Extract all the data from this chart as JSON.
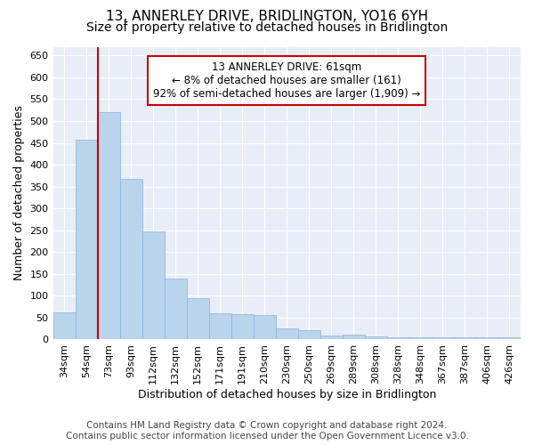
{
  "title": "13, ANNERLEY DRIVE, BRIDLINGTON, YO16 6YH",
  "subtitle": "Size of property relative to detached houses in Bridlington",
  "xlabel": "Distribution of detached houses by size in Bridlington",
  "ylabel": "Number of detached properties",
  "categories": [
    "34sqm",
    "54sqm",
    "73sqm",
    "93sqm",
    "112sqm",
    "132sqm",
    "152sqm",
    "171sqm",
    "191sqm",
    "210sqm",
    "230sqm",
    "250sqm",
    "269sqm",
    "289sqm",
    "308sqm",
    "328sqm",
    "348sqm",
    "367sqm",
    "387sqm",
    "406sqm",
    "426sqm"
  ],
  "values": [
    62,
    457,
    521,
    368,
    248,
    140,
    94,
    60,
    57,
    55,
    25,
    22,
    10,
    11,
    7,
    6,
    5,
    5,
    5,
    4,
    4
  ],
  "bar_color": "#bad4ec",
  "bar_edge_color": "#8ab4d8",
  "vline_color": "#cc0000",
  "vline_x": 1.5,
  "annotation_text": "13 ANNERLEY DRIVE: 61sqm\n← 8% of detached houses are smaller (161)\n92% of semi-detached houses are larger (1,909) →",
  "annotation_box_color": "#ffffff",
  "annotation_box_edge_color": "#cc0000",
  "ylim": [
    0,
    670
  ],
  "yticks": [
    0,
    50,
    100,
    150,
    200,
    250,
    300,
    350,
    400,
    450,
    500,
    550,
    600,
    650
  ],
  "footer_line1": "Contains HM Land Registry data © Crown copyright and database right 2024.",
  "footer_line2": "Contains public sector information licensed under the Open Government Licence v3.0.",
  "fig_bg_color": "#ffffff",
  "plot_bg_color": "#e8eef8",
  "grid_color": "#ffffff",
  "title_fontsize": 11,
  "subtitle_fontsize": 10,
  "xlabel_fontsize": 9,
  "ylabel_fontsize": 9,
  "tick_fontsize": 8,
  "annot_fontsize": 8.5,
  "footer_fontsize": 7.5
}
